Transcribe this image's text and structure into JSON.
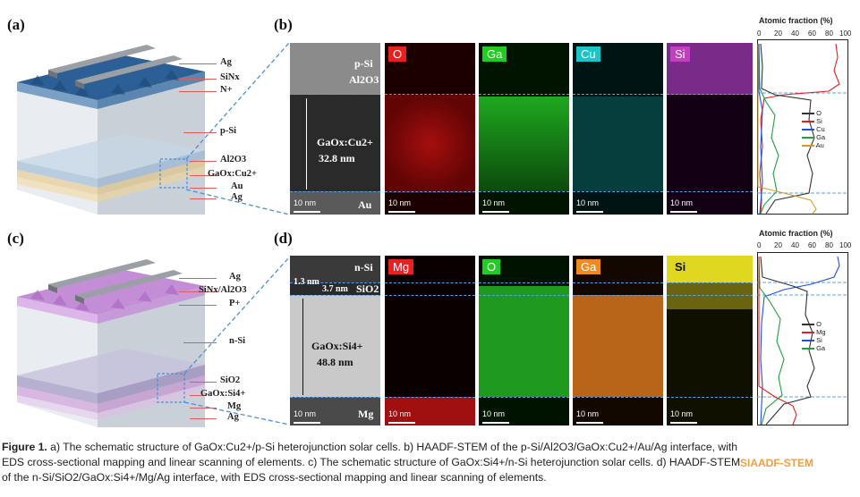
{
  "panels": {
    "a": "(a)",
    "b": "(b)",
    "c": "(c)",
    "d": "(d)"
  },
  "schematic_a": {
    "layers": [
      "Ag",
      "SiNx",
      "N+",
      "p-Si",
      "Al2O3",
      "GaOx:Cu2+",
      "Au",
      "Ag"
    ],
    "colors": {
      "top": "#2f6ea8",
      "body": "#d8dee6",
      "stack": "#e8d8b8"
    }
  },
  "schematic_c": {
    "layers": [
      "Ag",
      "SiNx/Al2O3",
      "P+",
      "n-Si",
      "SiO2",
      "GaOx:Si4+",
      "Mg",
      "Ag"
    ],
    "colors": {
      "top": "#c58fd6",
      "body": "#d8dee6",
      "stack": "#c9b8d9"
    }
  },
  "haadf_b": {
    "top": "p-Si",
    "mid": "Al2O3",
    "layer": "GaOx:Cu2+",
    "thickness": "32.8 nm",
    "bottom": "Au",
    "scale": "10 nm"
  },
  "haadf_d": {
    "top": "n-Si",
    "d1": "1.3 nm",
    "d2": "3.7 nm",
    "sio2": "SiO2",
    "layer": "GaOx:Si4+",
    "thickness": "48.8 nm",
    "bottom": "Mg",
    "scale": "10 nm"
  },
  "maps_b": [
    {
      "element": "O",
      "color": "#e82020",
      "scale": "10 nm"
    },
    {
      "element": "Ga",
      "color": "#22cc22",
      "scale": "10 nm"
    },
    {
      "element": "Cu",
      "color": "#18c8c8",
      "scale": "10 nm"
    },
    {
      "element": "Si",
      "color": "#c040c0",
      "scale": "10 nm"
    }
  ],
  "maps_d": [
    {
      "element": "Mg",
      "color": "#e82020",
      "scale": "10 nm"
    },
    {
      "element": "O",
      "color": "#22cc22",
      "scale": "10 nm"
    },
    {
      "element": "Ga",
      "color": "#f08a20",
      "scale": "10 nm"
    },
    {
      "element": "Si",
      "color": "#e8e020",
      "scale": "10 nm"
    }
  ],
  "profile_b": {
    "title": "Atomic fraction (%)",
    "ticks": [
      "0",
      "20",
      "40",
      "60",
      "80",
      "100"
    ],
    "legend": [
      {
        "name": "O",
        "color": "#333333"
      },
      {
        "name": "Si",
        "color": "#e02020"
      },
      {
        "name": "Cu",
        "color": "#1e50e0"
      },
      {
        "name": "Ga",
        "color": "#20a040"
      },
      {
        "name": "Au",
        "color": "#d89a20"
      }
    ]
  },
  "profile_d": {
    "title": "Atomic fraction (%)",
    "ticks": [
      "0",
      "20",
      "40",
      "60",
      "80",
      "100"
    ],
    "legend": [
      {
        "name": "O",
        "color": "#333333"
      },
      {
        "name": "Mg",
        "color": "#e02020"
      },
      {
        "name": "Si",
        "color": "#1e50e0"
      },
      {
        "name": "Ga",
        "color": "#20a040"
      }
    ]
  },
  "caption": {
    "label": "Figure 1.",
    "line1": " a) The schematic structure of GaOx:Cu2+/p-Si heterojunction solar cells. b) HAADF-STEM of the p-Si/Al2O3/GaOx:Cu2+/Au/Ag interface, with",
    "line2": "EDS cross-sectional mapping and linear scanning of elements. c) The schematic structure of GaOx:Si4+/n-Si heterojunction solar cells. d) HAADF-STEM",
    "line3": "of the n-Si/SiO2/GaOx:Si4+/Mg/Ag interface, with EDS cross-sectional mapping and linear scanning of elements."
  },
  "watermark": "SIAADF-STEM"
}
